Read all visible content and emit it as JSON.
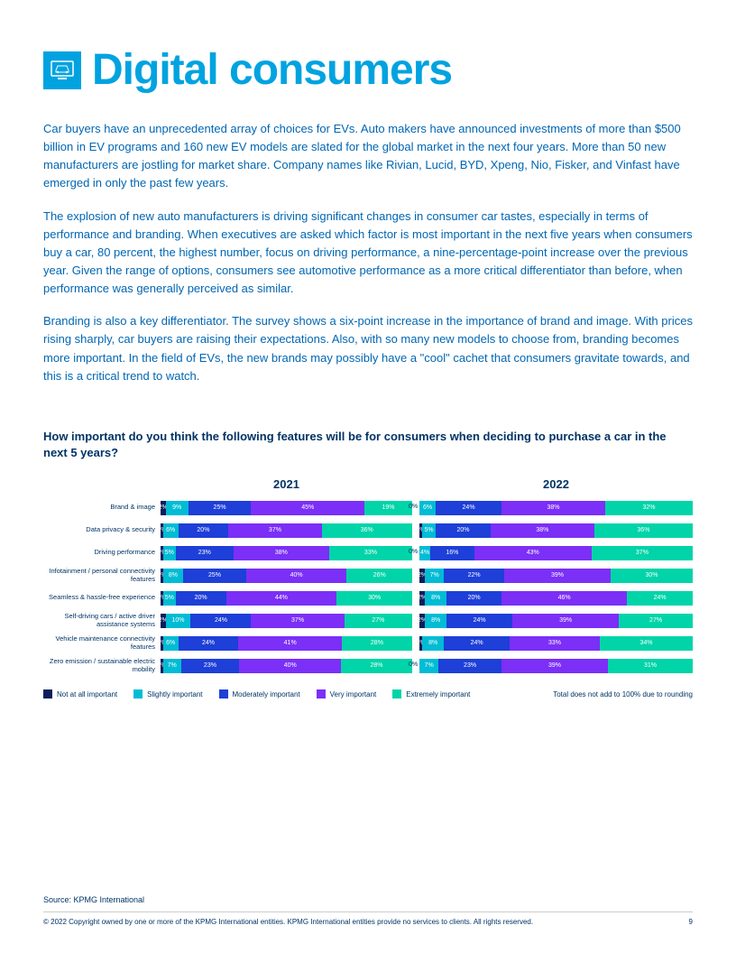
{
  "header": {
    "title": "Digital consumers"
  },
  "paragraphs": [
    "Car buyers have an unprecedented array of choices for EVs. Auto makers have announced investments of more than $500 billion in EV programs and 160 new EV models are slated for the global market in the next four years. More than 50 new manufacturers are jostling for market share. Company names like Rivian, Lucid, BYD, Xpeng, Nio, Fisker, and Vinfast have emerged in only the past few years.",
    "The explosion of new auto manufacturers is driving significant changes in consumer car tastes, especially in terms of performance and branding. When executives are asked which factor is most important in the next five years when consumers buy a car, 80 percent, the highest number, focus on driving performance, a nine-percentage-point increase over the previous year. Given the range of options, consumers see automotive performance as a more critical differentiator than before, when performance was generally perceived as similar.",
    "Branding is also a key differentiator. The survey shows a six-point increase in the importance of brand and image. With prices rising sharply, car buyers are raising their expectations. Also, with so many new models to choose from, branding becomes more important. In the field of EVs, the new brands may possibly have a \"cool\" cachet that consumers gravitate towards, and this is a critical trend to watch."
  ],
  "chart": {
    "title": "How important do you think the following features will be for consumers when deciding to purchase a car in the next 5 years?",
    "years": [
      "2021",
      "2022"
    ],
    "categories": [
      "Brand & image",
      "Data privacy & security",
      "Driving performance",
      "Infotainment / personal connectivity features",
      "Seamless & hassle-free experience",
      "Self-driving cars / active driver assistance systems",
      "Vehicle maintenance connectivity features",
      "Zero emission / sustainable electric mobility"
    ],
    "colors": [
      "#0a1e5c",
      "#00bcd4",
      "#1e3fd8",
      "#7b2ff7",
      "#00d4a8"
    ],
    "legend": [
      "Not at all important",
      "Slightly important",
      "Moderately important",
      "Very important",
      "Extremely important"
    ],
    "legend_note": "Total does not add to 100% due to rounding",
    "data2021": [
      {
        "zero": null,
        "vals": [
          2,
          9,
          25,
          45,
          19
        ]
      },
      {
        "zero": null,
        "vals": [
          1,
          6,
          20,
          37,
          36
        ]
      },
      {
        "zero": null,
        "vals": [
          1,
          5,
          23,
          38,
          33
        ]
      },
      {
        "zero": null,
        "vals": [
          1,
          8,
          25,
          40,
          26
        ]
      },
      {
        "zero": null,
        "vals": [
          1,
          5,
          20,
          44,
          30
        ]
      },
      {
        "zero": null,
        "vals": [
          2,
          10,
          24,
          37,
          27
        ]
      },
      {
        "zero": null,
        "vals": [
          1,
          6,
          24,
          41,
          28
        ]
      },
      {
        "zero": null,
        "vals": [
          1,
          7,
          23,
          40,
          28
        ]
      }
    ],
    "data2022": [
      {
        "zero": "0%",
        "vals": [
          0,
          6,
          24,
          38,
          32
        ]
      },
      {
        "zero": null,
        "vals": [
          1,
          5,
          20,
          38,
          36
        ]
      },
      {
        "zero": "0%",
        "vals": [
          0,
          4,
          16,
          43,
          37
        ]
      },
      {
        "zero": null,
        "vals": [
          2,
          7,
          22,
          39,
          30
        ]
      },
      {
        "zero": null,
        "vals": [
          2,
          8,
          20,
          46,
          24
        ]
      },
      {
        "zero": null,
        "vals": [
          2,
          8,
          24,
          39,
          27
        ]
      },
      {
        "zero": null,
        "vals": [
          1,
          8,
          24,
          33,
          34
        ]
      },
      {
        "zero": "0%",
        "vals": [
          0,
          7,
          23,
          39,
          31
        ]
      }
    ]
  },
  "footer": {
    "source": "Source: KPMG International",
    "copyright": "© 2022 Copyright owned by one or more of the KPMG International entities. KPMG International entities provide no services to clients. All rights reserved.",
    "page": "9"
  }
}
